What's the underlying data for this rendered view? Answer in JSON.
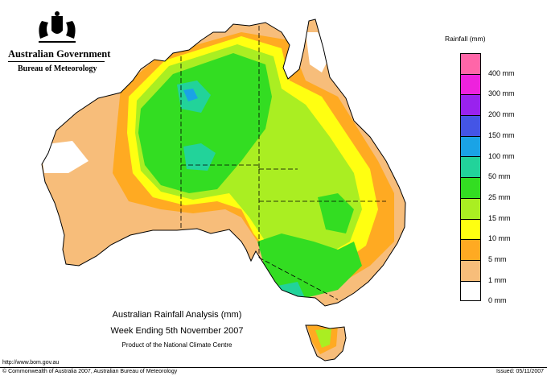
{
  "header": {
    "government": "Australian Government",
    "bureau": "Bureau of Meteorology"
  },
  "legend": {
    "title": "Rainfall (mm)",
    "items": [
      {
        "label": "400 mm",
        "color": "#ff66a8"
      },
      {
        "label": "300 mm",
        "color": "#ee22dd"
      },
      {
        "label": "200 mm",
        "color": "#9922ee"
      },
      {
        "label": "150 mm",
        "color": "#4455e6"
      },
      {
        "label": "100 mm",
        "color": "#1aa3e6"
      },
      {
        "label": "50 mm",
        "color": "#22d39a"
      },
      {
        "label": "25 mm",
        "color": "#33dd22"
      },
      {
        "label": "15 mm",
        "color": "#aaee22"
      },
      {
        "label": "10 mm",
        "color": "#ffff11"
      },
      {
        "label": "5 mm",
        "color": "#ffaa22"
      },
      {
        "label": "1 mm",
        "color": "#f7bd7a"
      },
      {
        "label": "0 mm",
        "color": "#ffffff"
      }
    ]
  },
  "caption": {
    "line1": "Australian Rainfall Analysis (mm)",
    "line2": "Week Ending 5th November 2007",
    "line3": "Product of the National Climate Centre"
  },
  "footer": {
    "url": "http://www.bom.gov.au",
    "copyright": "© Commonwealth of Australia 2007, Australian Bureau of Meteorology",
    "issued": "Issued: 05/11/2007"
  }
}
